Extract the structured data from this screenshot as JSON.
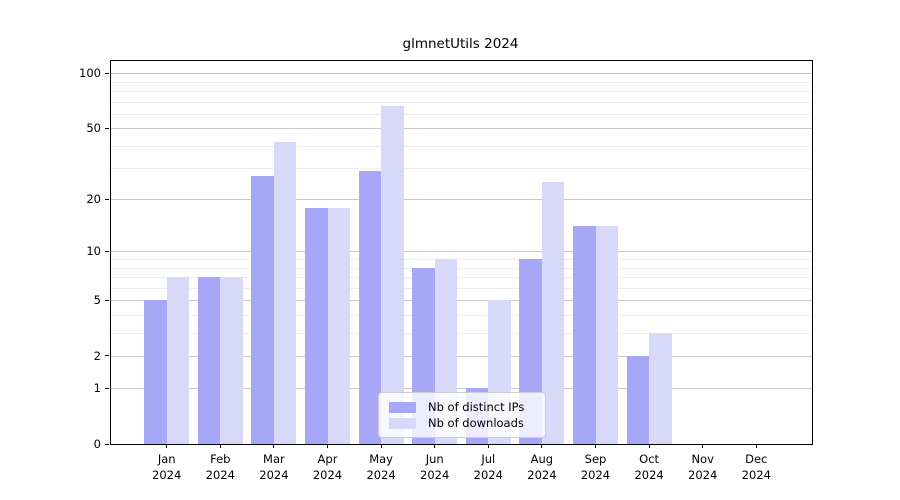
{
  "title": "glmnetUtils 2024",
  "chart_data": {
    "type": "bar",
    "categories": [
      "Jan",
      "Feb",
      "Mar",
      "Apr",
      "May",
      "Jun",
      "Jul",
      "Aug",
      "Sep",
      "Oct",
      "Nov",
      "Dec"
    ],
    "year_label": "2024",
    "series": [
      {
        "name": "Nb of distinct IPs",
        "color": "#a7a7f7",
        "values": [
          5,
          7,
          27,
          18,
          29,
          8,
          1,
          9,
          14,
          2,
          0,
          0
        ]
      },
      {
        "name": "Nb of downloads",
        "color": "#d8d8f9",
        "values": [
          7,
          7,
          42,
          18,
          66,
          9,
          5,
          25,
          14,
          3,
          0,
          0
        ]
      }
    ],
    "yscale": "log1p",
    "ylim": [
      0,
      117
    ],
    "ytick_labels": [
      "100",
      "50",
      "20",
      "10",
      "5",
      "2",
      "1",
      "0"
    ],
    "ytick_values": [
      100,
      50,
      20,
      10,
      5,
      2,
      1,
      0
    ],
    "major_grid_values": [
      1,
      2,
      5,
      10,
      20,
      50,
      100
    ],
    "minor_grid_values": [
      3,
      4,
      6,
      7,
      8,
      9,
      30,
      40,
      60,
      70,
      80,
      90
    ],
    "grid": true,
    "legend_position": "lower center"
  },
  "colors": {
    "bar_distinct_ips": "#a7a7f7",
    "bar_downloads": "#d8d8f9",
    "major_grid": "#c9c9c9",
    "minor_grid": "#ededed",
    "axis": "#000000",
    "background": "#ffffff"
  }
}
